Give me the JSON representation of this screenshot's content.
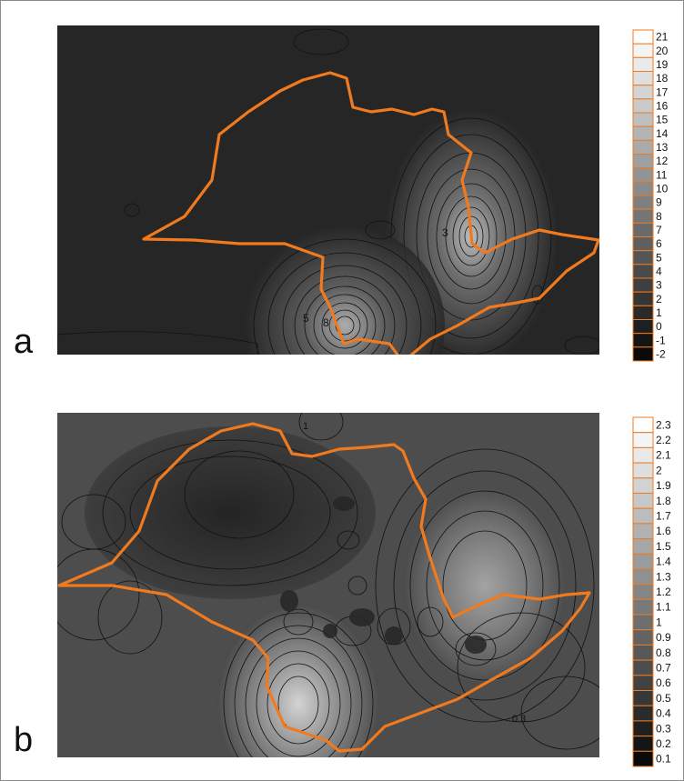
{
  "panels": [
    {
      "label": "a",
      "legend": {
        "values": [
          "21",
          "20",
          "19",
          "18",
          "17",
          "16",
          "15",
          "14",
          "13",
          "12",
          "11",
          "10",
          "9",
          "8",
          "7",
          "6",
          "5",
          "4",
          "3",
          "2",
          "1",
          "0",
          "-1",
          "-2"
        ],
        "min": -2,
        "max": 21
      },
      "contour_annotations": [
        "3",
        "5",
        "8"
      ]
    },
    {
      "label": "b",
      "legend": {
        "values": [
          "2.3",
          "2.2",
          "2.1",
          "2",
          "1.9",
          "1.8",
          "1.7",
          "1.6",
          "1.5",
          "1.4",
          "1.3",
          "1.2",
          "1.1",
          "1",
          "0.9",
          "0.8",
          "0.7",
          "0.6",
          "0.5",
          "0.4",
          "0.3",
          "0.2",
          "0.1"
        ],
        "min": 0.1,
        "max": 2.3
      },
      "contour_annotations": [
        "1",
        "0.3"
      ]
    }
  ],
  "colors": {
    "boundary": "#f07a1f",
    "contour": "#111111",
    "legend_border": "#f07a1f"
  }
}
